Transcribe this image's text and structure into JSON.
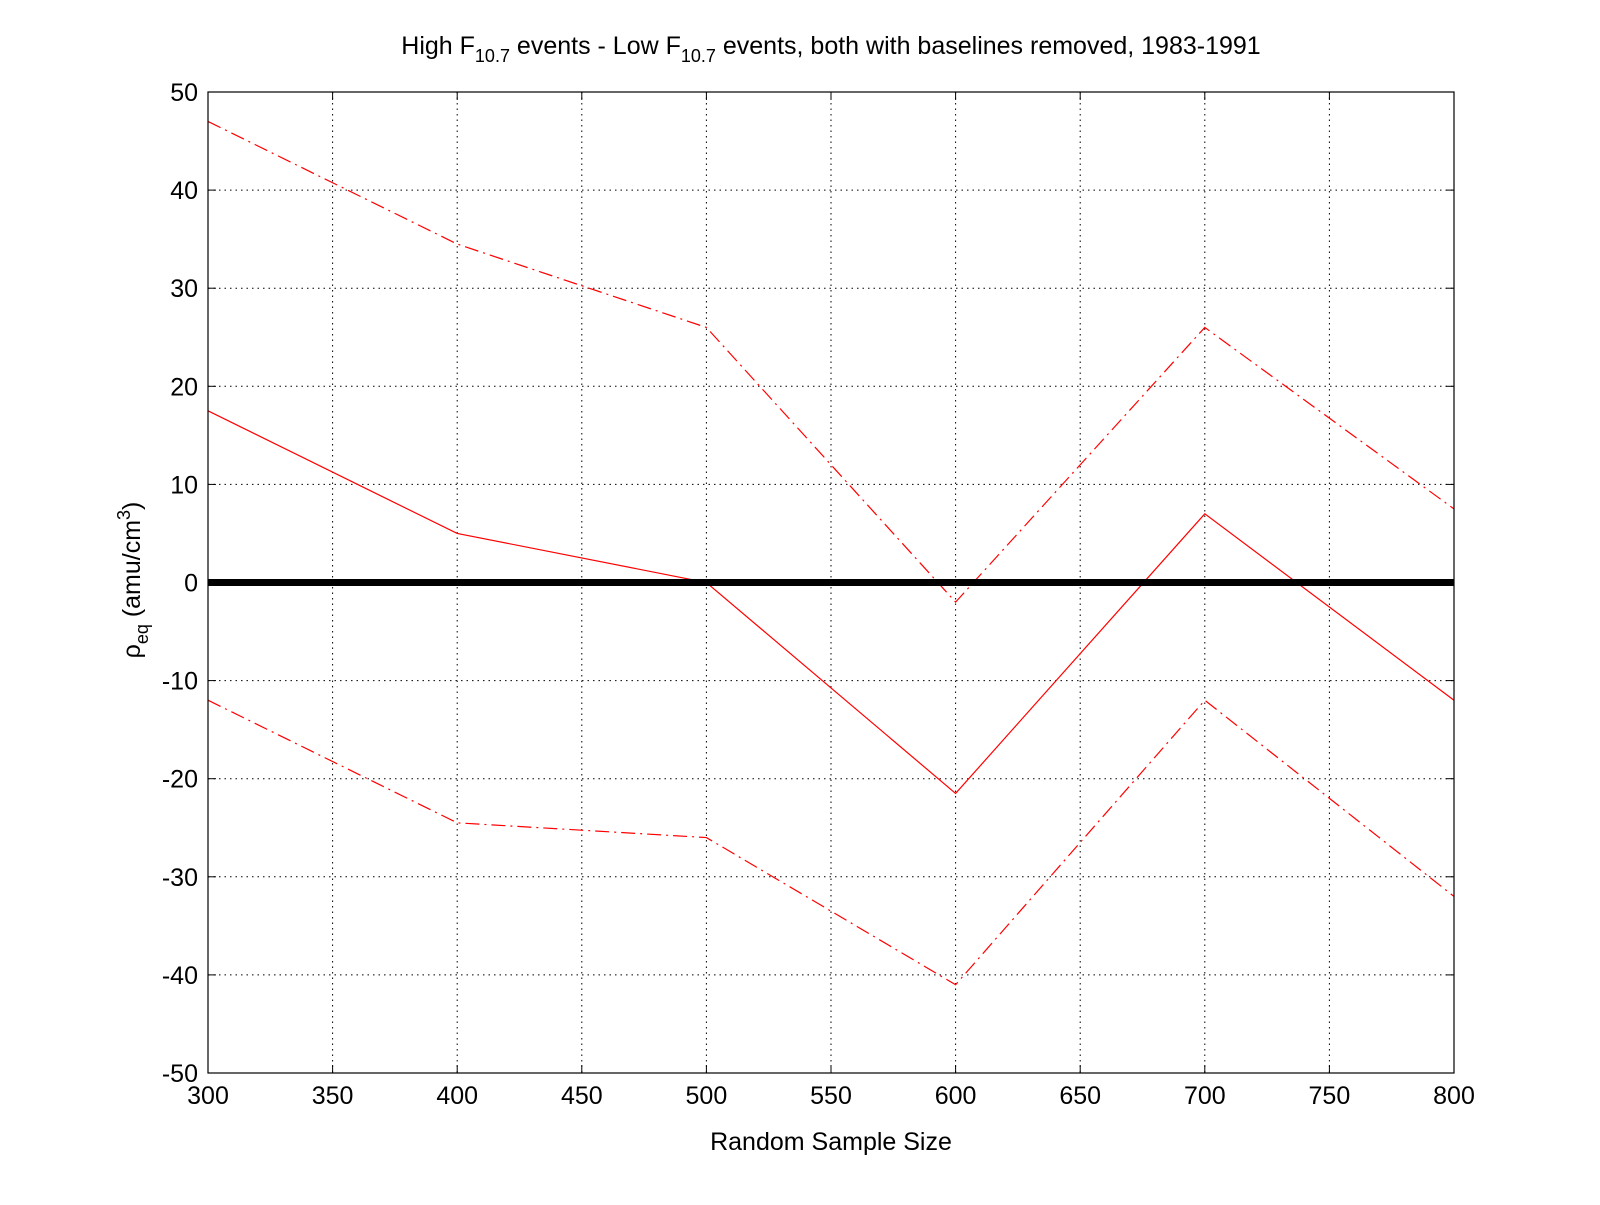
{
  "chart_data": {
    "type": "line",
    "title": {
      "parts": [
        {
          "text": "High F",
          "sub": false
        },
        {
          "text": "10.7",
          "sub": true
        },
        {
          "text": " events - Low F",
          "sub": false
        },
        {
          "text": "10.7",
          "sub": true
        },
        {
          "text": " events, both with baselines removed, 1983-1991",
          "sub": false
        }
      ]
    },
    "xlabel": "Random Sample Size",
    "ylabel": {
      "symbol": "ρ",
      "sub": "eq",
      "unit_prefix": " (amu/cm",
      "unit_sup": "3",
      "unit_suffix": ")"
    },
    "xlim": [
      300,
      800
    ],
    "ylim": [
      -50,
      50
    ],
    "xticks": [
      300,
      350,
      400,
      450,
      500,
      550,
      600,
      650,
      700,
      750,
      800
    ],
    "yticks": [
      50,
      40,
      30,
      20,
      10,
      0,
      -10,
      -20,
      -30,
      -40,
      -50
    ],
    "grid": true,
    "x": [
      300,
      400,
      500,
      600,
      700,
      800
    ],
    "series": [
      {
        "style": "solid",
        "color": "#ff0000",
        "values": [
          17.5,
          5,
          0,
          -21.5,
          7,
          -12
        ]
      },
      {
        "style": "dashdot",
        "color": "#ff0000",
        "values": [
          47,
          34.5,
          26,
          -2,
          26,
          7.5
        ]
      },
      {
        "style": "dashdot",
        "color": "#ff0000",
        "values": [
          -12,
          -24.5,
          -26,
          -41,
          -12,
          -32
        ]
      }
    ],
    "reference_line": {
      "y": 0,
      "color": "#000000"
    }
  }
}
